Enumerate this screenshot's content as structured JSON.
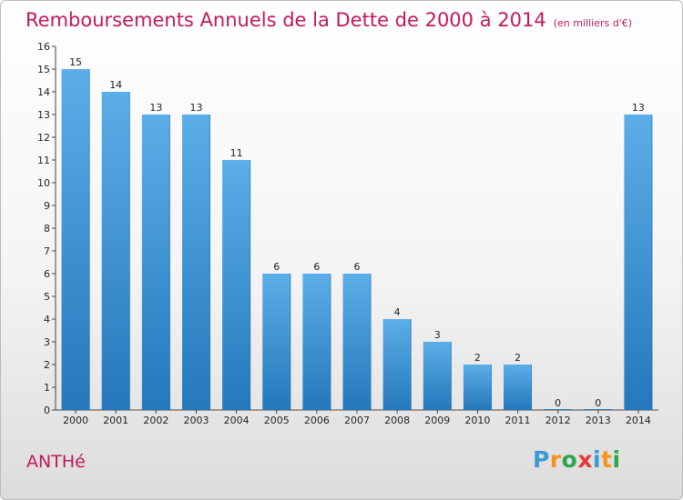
{
  "title": "Remboursements Annuels de la Dette de 2000 à 2014",
  "subtitle": "(en milliers d'€)",
  "commune": "ANTHé",
  "logo": {
    "letters": [
      "P",
      "r",
      "o",
      "x",
      "i",
      "t",
      "i"
    ],
    "colors": [
      "#3a9ad9",
      "#f7941d",
      "#2aa84a",
      "#e53935",
      "#3a9ad9",
      "#f7941d",
      "#2aa84a"
    ]
  },
  "colors": {
    "bar_top": "#5caee8",
    "bar_bottom": "#2478bb",
    "title": "#c2185b"
  },
  "chart_data": {
    "type": "bar",
    "title": "Remboursements Annuels de la Dette de 2000 à 2014",
    "categories": [
      "2000",
      "2001",
      "2002",
      "2003",
      "2004",
      "2005",
      "2006",
      "2007",
      "2008",
      "2009",
      "2010",
      "2011",
      "2012",
      "2013",
      "2014"
    ],
    "values": [
      15,
      14,
      13,
      13,
      11,
      6,
      6,
      6,
      4,
      3,
      2,
      2,
      0,
      0,
      13
    ],
    "value_labels": [
      "15",
      "14",
      "13",
      "13",
      "11",
      "6",
      "6",
      "6",
      "4",
      "3",
      "2",
      "2",
      "0",
      "0",
      "13"
    ],
    "ylim": [
      0,
      16
    ],
    "yticks": [
      "0",
      "1",
      "2",
      "3",
      "4",
      "5",
      "6",
      "7",
      "8",
      "9",
      "10",
      "11",
      "12",
      "13",
      "14",
      "15",
      "16"
    ],
    "grid": false
  }
}
